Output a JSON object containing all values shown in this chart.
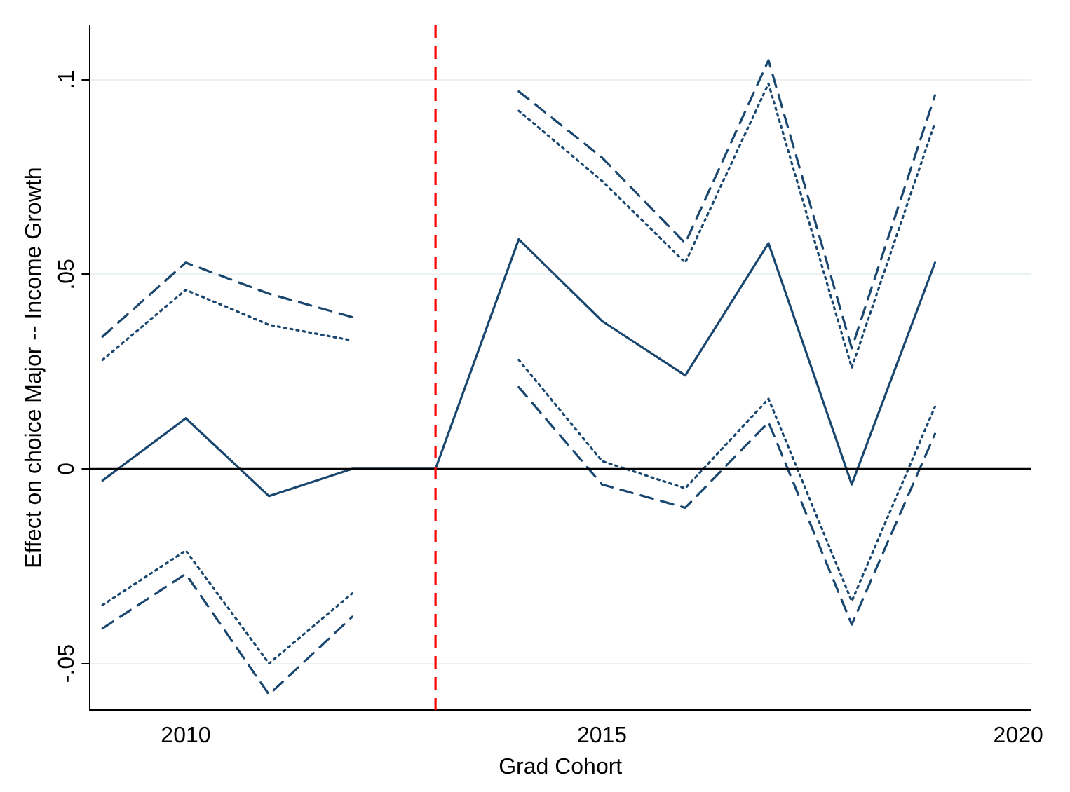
{
  "chart_data": {
    "type": "line",
    "xlabel": "Grad Cohort",
    "ylabel": "Effect on choice Major -- Income Growth",
    "x": [
      2009,
      2010,
      2011,
      2012,
      2013,
      2014,
      2015,
      2016,
      2017,
      2018,
      2019
    ],
    "series": [
      {
        "color": "#1a476f",
        "line_style": "solid",
        "values": [
          -0.003,
          0.013,
          -0.007,
          0.0,
          0.0,
          0.059,
          0.038,
          0.024,
          0.058,
          -0.004,
          0.053
        ]
      },
      {
        "color": "#1a476f",
        "line_style": "dashed",
        "values": [
          0.034,
          0.053,
          0.045,
          0.039,
          null,
          0.097,
          0.08,
          0.058,
          0.105,
          0.031,
          0.096
        ]
      },
      {
        "color": "#1a476f",
        "line_style": "dashed",
        "values": [
          -0.041,
          -0.027,
          -0.058,
          -0.038,
          null,
          0.021,
          -0.004,
          -0.01,
          0.012,
          -0.04,
          0.009
        ]
      },
      {
        "color": "#1a476f",
        "line_style": "dotted",
        "values": [
          0.028,
          0.046,
          0.037,
          0.033,
          null,
          0.092,
          0.074,
          0.053,
          0.099,
          0.026,
          0.089
        ]
      },
      {
        "color": "#1a476f",
        "line_style": "dotted",
        "values": [
          -0.035,
          -0.021,
          -0.05,
          -0.032,
          null,
          0.028,
          0.002,
          -0.005,
          0.018,
          -0.034,
          0.016
        ]
      }
    ],
    "xlim": [
      2008.85,
      2020.15
    ],
    "xticks": [
      2010,
      2015,
      2020
    ],
    "ylim": [
      -0.062,
      0.114
    ],
    "yticks": [
      {
        "value": -0.05,
        "label": "-.05"
      },
      {
        "value": 0,
        "label": "0"
      },
      {
        "value": 0.05,
        "label": ".05"
      },
      {
        "value": 0.1,
        "label": ".1"
      }
    ],
    "grid": "y",
    "legend": false,
    "marker": "none",
    "ref_lines": [
      {
        "axis": "y",
        "value": 0,
        "color": "#000000",
        "line_style": "solid"
      },
      {
        "axis": "x",
        "value": 2013,
        "color": "#ff0000",
        "line_style": "dashed"
      }
    ]
  }
}
